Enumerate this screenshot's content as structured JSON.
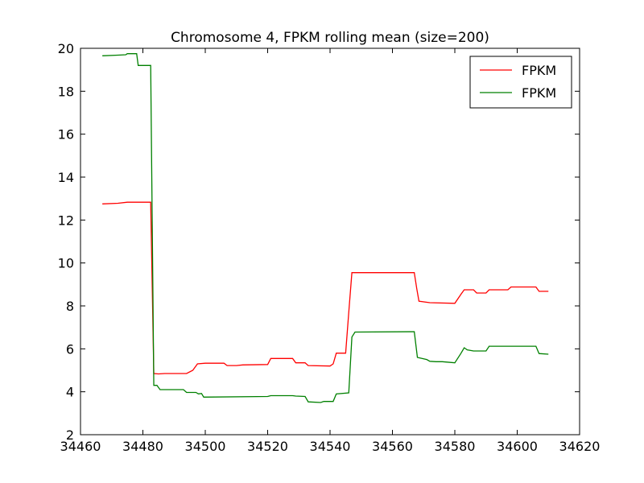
{
  "chart_data": {
    "type": "line",
    "title": "Chromosome 4, FPKM rolling mean (size=200)",
    "xlabel": "",
    "ylabel": "",
    "xlim": [
      34460,
      34620
    ],
    "ylim": [
      2,
      20
    ],
    "xticks": [
      34460,
      34480,
      34500,
      34520,
      34540,
      34560,
      34580,
      34600,
      34620
    ],
    "yticks": [
      2,
      4,
      6,
      8,
      10,
      12,
      14,
      16,
      18,
      20
    ],
    "grid": false,
    "legend_position": "top-right",
    "series": [
      {
        "name": "FPKM",
        "color": "#ff0000",
        "points": [
          [
            34467,
            12.75
          ],
          [
            34472,
            12.78
          ],
          [
            34475,
            12.83
          ],
          [
            34480,
            12.83
          ],
          [
            34482.5,
            12.83
          ],
          [
            34483.5,
            4.85
          ],
          [
            34485,
            4.83
          ],
          [
            34487,
            4.85
          ],
          [
            34494,
            4.85
          ],
          [
            34496,
            5.0
          ],
          [
            34497.5,
            5.3
          ],
          [
            34500,
            5.33
          ],
          [
            34506,
            5.33
          ],
          [
            34507,
            5.22
          ],
          [
            34510,
            5.22
          ],
          [
            34512,
            5.25
          ],
          [
            34520,
            5.27
          ],
          [
            34521,
            5.55
          ],
          [
            34528,
            5.55
          ],
          [
            34529,
            5.35
          ],
          [
            34532,
            5.35
          ],
          [
            34533,
            5.22
          ],
          [
            34540,
            5.2
          ],
          [
            34541,
            5.3
          ],
          [
            34542,
            5.8
          ],
          [
            34545,
            5.8
          ],
          [
            34546,
            7.7
          ],
          [
            34547,
            9.55
          ],
          [
            34567,
            9.55
          ],
          [
            34567.8,
            8.8
          ],
          [
            34568.5,
            8.22
          ],
          [
            34572,
            8.15
          ],
          [
            34580,
            8.12
          ],
          [
            34582,
            8.55
          ],
          [
            34583,
            8.75
          ],
          [
            34586,
            8.75
          ],
          [
            34587,
            8.6
          ],
          [
            34590,
            8.6
          ],
          [
            34591,
            8.75
          ],
          [
            34597,
            8.75
          ],
          [
            34598,
            8.88
          ],
          [
            34606,
            8.88
          ],
          [
            34607,
            8.68
          ],
          [
            34610,
            8.68
          ]
        ]
      },
      {
        "name": "FPKM",
        "color": "#008000",
        "points": [
          [
            34467,
            19.65
          ],
          [
            34472,
            19.68
          ],
          [
            34474.5,
            19.7
          ],
          [
            34475,
            19.75
          ],
          [
            34478,
            19.75
          ],
          [
            34478.5,
            19.2
          ],
          [
            34482.5,
            19.2
          ],
          [
            34483.5,
            4.3
          ],
          [
            34484.5,
            4.3
          ],
          [
            34485.5,
            4.1
          ],
          [
            34493,
            4.1
          ],
          [
            34494,
            3.97
          ],
          [
            34497,
            3.97
          ],
          [
            34497.8,
            3.9
          ],
          [
            34498.8,
            3.92
          ],
          [
            34499.5,
            3.75
          ],
          [
            34520,
            3.78
          ],
          [
            34521,
            3.82
          ],
          [
            34528,
            3.82
          ],
          [
            34529,
            3.8
          ],
          [
            34532,
            3.78
          ],
          [
            34533,
            3.53
          ],
          [
            34537,
            3.5
          ],
          [
            34538,
            3.55
          ],
          [
            34541,
            3.55
          ],
          [
            34542,
            3.9
          ],
          [
            34546,
            3.95
          ],
          [
            34547,
            6.55
          ],
          [
            34548,
            6.78
          ],
          [
            34567,
            6.8
          ],
          [
            34568,
            5.6
          ],
          [
            34571,
            5.5
          ],
          [
            34572,
            5.42
          ],
          [
            34574,
            5.4
          ],
          [
            34576,
            5.4
          ],
          [
            34580,
            5.35
          ],
          [
            34582,
            5.8
          ],
          [
            34583,
            6.05
          ],
          [
            34584,
            5.95
          ],
          [
            34586,
            5.9
          ],
          [
            34590,
            5.9
          ],
          [
            34591,
            6.12
          ],
          [
            34606,
            6.12
          ],
          [
            34607,
            5.78
          ],
          [
            34610,
            5.75
          ]
        ]
      }
    ]
  }
}
